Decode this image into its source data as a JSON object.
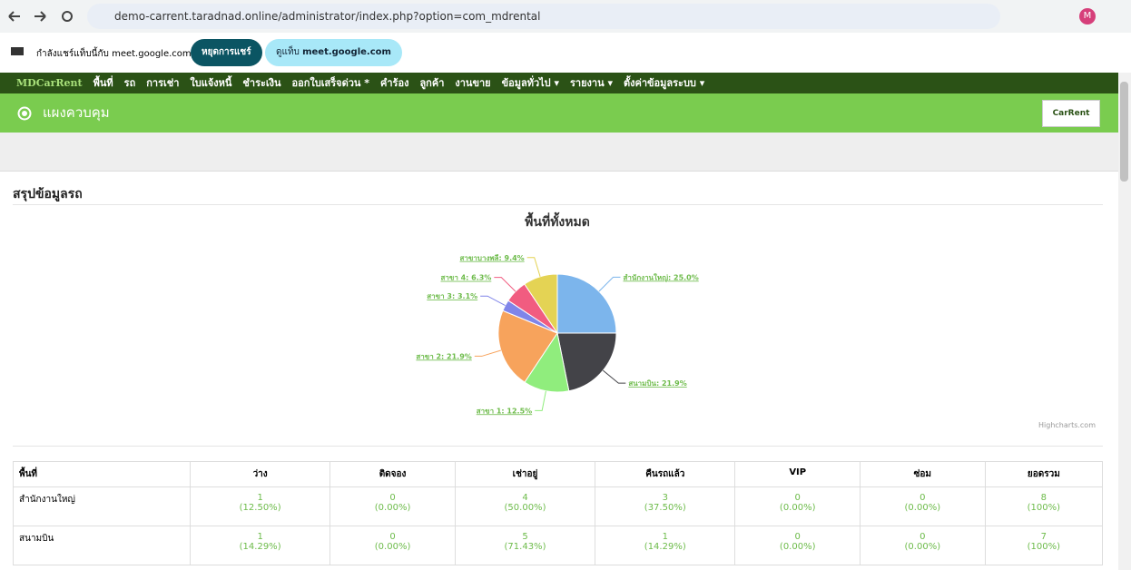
{
  "browser": {
    "url": "demo-carrent.taradnad.online/administrator/index.php?option=com_mdrental",
    "avatar": "M"
  },
  "share_bar": {
    "message": "กำลังแชร์แท็บนี้กับ meet.google.com",
    "stop_button": "หยุดการแชร์",
    "view_button_prefix": "ดูแท็บ",
    "view_button_site": "meet.google.com"
  },
  "app": {
    "brand": "MDCarRent",
    "nav": [
      "พื้นที่",
      "รถ",
      "การเช่า",
      "ใบแจ้งหนี้",
      "ชำระเงิน",
      "ออกใบเสร็จด่วน *",
      "คำร้อง",
      "ลูกค้า",
      "งานขาย",
      "ข้อมูลทั่วไป ▾",
      "รายงาน ▾",
      "ตั้งค่าข้อมูลระบบ ▾"
    ],
    "header": "แผงควบคุม",
    "logo": "CarRent",
    "section_title": "สรุปข้อมูลรถ"
  },
  "chart_data": {
    "type": "pie",
    "title": "พื้นที่ทั้งหมด",
    "credits": "Highcharts.com",
    "values": [
      25.0,
      21.9,
      12.5,
      21.9,
      3.1,
      6.3,
      9.4
    ],
    "value_labels": [
      "สำนักงานใหญ่: 25.0%",
      "สนามบิน: 21.9%",
      "สาขา 1: 12.5%",
      "สาขา 2: 21.9%",
      "สาขา 3: 3.1%",
      "สาขา 4: 6.3%",
      "สาขาบางพลี: 9.4%"
    ],
    "colors": [
      "#7cb5ec",
      "#434348",
      "#90ed7d",
      "#f7a35c",
      "#8085e9",
      "#f15c80",
      "#e4d354"
    ]
  },
  "table": {
    "header": [
      "พื้นที่",
      "ว่าง",
      "ติดจอง",
      "เช่าอยู่",
      "คืนรถแล้ว",
      "VIP",
      "ซ่อม",
      "ยอดรวม"
    ],
    "rows": [
      [
        "สำนักงานใหญ่",
        [
          "1",
          "(12.50%)"
        ],
        [
          "0",
          "(0.00%)"
        ],
        [
          "4",
          "(50.00%)"
        ],
        [
          "3",
          "(37.50%)"
        ],
        [
          "0",
          "(0.00%)"
        ],
        [
          "0",
          "(0.00%)"
        ],
        [
          "8",
          "(100%)"
        ]
      ],
      [
        "สนามบิน",
        [
          "1",
          "(14.29%)"
        ],
        [
          "0",
          "(0.00%)"
        ],
        [
          "5",
          "(71.43%)"
        ],
        [
          "1",
          "(14.29%)"
        ],
        [
          "0",
          "(0.00%)"
        ],
        [
          "0",
          "(0.00%)"
        ],
        [
          "7",
          "(100%)"
        ]
      ]
    ]
  }
}
